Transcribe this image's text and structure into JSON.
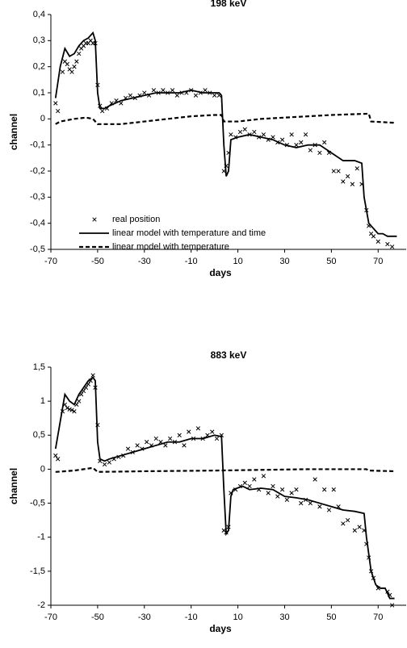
{
  "chart_data": [
    {
      "type": "line",
      "title": "198 keV",
      "xlabel": "days",
      "ylabel": "channel",
      "legend": "lower left",
      "xlim": [
        -70,
        82
      ],
      "xticks": [
        -70,
        -50,
        -30,
        -10,
        10,
        30,
        50,
        70
      ],
      "ylim": [
        -0.5,
        0.4
      ],
      "yticks": [
        {
          "value": 0.4,
          "label": "0,4"
        },
        {
          "value": 0.3,
          "label": "0,3"
        },
        {
          "value": 0.2,
          "label": "0,2"
        },
        {
          "value": 0.1,
          "label": "0,1"
        },
        0,
        {
          "value": -0.1,
          "label": "-0,1"
        },
        {
          "value": -0.2,
          "label": "-0,2"
        },
        {
          "value": -0.3,
          "label": "-0,3"
        },
        {
          "value": -0.4,
          "label": "-0,4"
        },
        {
          "value": -0.5,
          "label": "-0,5"
        }
      ],
      "series": [
        {
          "name": "real position",
          "type": "scatter",
          "color": "#000000",
          "x": [
            -68,
            -67,
            -65,
            -64,
            -63,
            -62,
            -61,
            -60,
            -59,
            -58,
            -57,
            -56,
            -55,
            -54,
            -53,
            -52,
            -51,
            -50,
            -49,
            -48,
            -46,
            -44,
            -42,
            -40,
            -38,
            -36,
            -34,
            -32,
            -30,
            -28,
            -26,
            -24,
            -22,
            -20,
            -18,
            -16,
            -14,
            -12,
            -10,
            -8,
            -6,
            -4,
            -2,
            0,
            2,
            4,
            5,
            6,
            7,
            9,
            11,
            13,
            15,
            17,
            19,
            21,
            23,
            25,
            27,
            29,
            31,
            33,
            35,
            37,
            39,
            41,
            43,
            45,
            47,
            49,
            51,
            53,
            55,
            57,
            59,
            61,
            63,
            65,
            66,
            67,
            68,
            70,
            74,
            76
          ],
          "values": [
            0.06,
            0.03,
            0.18,
            0.22,
            0.21,
            0.19,
            0.18,
            0.2,
            0.22,
            0.25,
            0.27,
            0.28,
            0.29,
            0.29,
            0.3,
            0.29,
            0.29,
            0.13,
            0.05,
            0.03,
            0.04,
            0.06,
            0.07,
            0.06,
            0.08,
            0.09,
            0.08,
            0.09,
            0.1,
            0.09,
            0.11,
            0.1,
            0.11,
            0.1,
            0.11,
            0.09,
            0.1,
            0.1,
            0.11,
            0.09,
            0.1,
            0.11,
            0.1,
            0.09,
            0.09,
            -0.2,
            -0.18,
            -0.13,
            -0.06,
            -0.07,
            -0.05,
            -0.04,
            -0.06,
            -0.05,
            -0.07,
            -0.06,
            -0.08,
            -0.07,
            -0.09,
            -0.08,
            -0.1,
            -0.06,
            -0.1,
            -0.09,
            -0.06,
            -0.12,
            -0.1,
            -0.13,
            -0.09,
            -0.13,
            -0.2,
            -0.2,
            -0.24,
            -0.22,
            -0.25,
            -0.19,
            -0.25,
            -0.35,
            -0.41,
            -0.44,
            -0.45,
            -0.47,
            -0.48,
            -0.49
          ]
        },
        {
          "name": "linear model with temperature and time",
          "type": "line",
          "color": "#000000",
          "x": [
            -68,
            -66,
            -64,
            -62,
            -60,
            -58,
            -56,
            -54,
            -52,
            -51,
            -50,
            -49,
            -47,
            -45,
            -40,
            -35,
            -30,
            -25,
            -20,
            -15,
            -10,
            -5,
            0,
            2,
            3,
            4,
            5,
            6,
            7,
            10,
            15,
            20,
            25,
            30,
            35,
            40,
            45,
            50,
            55,
            60,
            63,
            64,
            66,
            68,
            70,
            72,
            74,
            76,
            78
          ],
          "values": [
            0.08,
            0.2,
            0.27,
            0.24,
            0.25,
            0.28,
            0.3,
            0.31,
            0.33,
            0.3,
            0.1,
            0.04,
            0.04,
            0.05,
            0.07,
            0.08,
            0.09,
            0.1,
            0.1,
            0.1,
            0.11,
            0.1,
            0.1,
            0.1,
            0.09,
            -0.1,
            -0.22,
            -0.2,
            -0.08,
            -0.07,
            -0.06,
            -0.07,
            -0.08,
            -0.1,
            -0.11,
            -0.1,
            -0.1,
            -0.13,
            -0.16,
            -0.16,
            -0.17,
            -0.3,
            -0.4,
            -0.42,
            -0.44,
            -0.44,
            -0.45,
            -0.45,
            -0.45
          ]
        },
        {
          "name": "linear model with temperature",
          "type": "line",
          "dash": true,
          "color": "#000000",
          "x": [
            -68,
            -66,
            -60,
            -55,
            -52,
            -50,
            -40,
            -30,
            -20,
            -10,
            0,
            3,
            4,
            10,
            20,
            40,
            50,
            66,
            67,
            77
          ],
          "values": [
            -0.02,
            -0.01,
            0,
            0.005,
            0,
            -0.02,
            -0.02,
            -0.01,
            0,
            0.01,
            0.015,
            0.015,
            -0.01,
            -0.01,
            0,
            0.01,
            0.015,
            0.02,
            -0.01,
            -0.015
          ]
        }
      ]
    },
    {
      "type": "line",
      "title": "883 keV",
      "xlabel": "days",
      "ylabel": "channel",
      "xlim": [
        -70,
        82
      ],
      "xticks": [
        -70,
        -50,
        -30,
        -10,
        10,
        30,
        50,
        70
      ],
      "ylim": [
        -2,
        1.5
      ],
      "yticks": [
        {
          "value": 1.5,
          "label": "1,5"
        },
        1,
        {
          "value": 0.5,
          "label": "0,5"
        },
        0,
        {
          "value": -0.5,
          "label": "-0,5"
        },
        -1,
        {
          "value": -1.5,
          "label": "-1,5"
        },
        -2
      ],
      "series": [
        {
          "type": "scatter",
          "color": "#000000",
          "x": [
            -68,
            -67,
            -65,
            -64,
            -63,
            -62,
            -61,
            -60,
            -59,
            -58,
            -57,
            -56,
            -55,
            -54,
            -53,
            -52,
            -51,
            -50,
            -49,
            -47,
            -45,
            -43,
            -41,
            -39,
            -37,
            -35,
            -33,
            -31,
            -29,
            -27,
            -25,
            -23,
            -21,
            -19,
            -17,
            -15,
            -13,
            -11,
            -9,
            -7,
            -5,
            -3,
            -1,
            1,
            3,
            4,
            5,
            6,
            7,
            9,
            11,
            13,
            15,
            17,
            19,
            21,
            23,
            25,
            27,
            29,
            31,
            33,
            35,
            37,
            39,
            41,
            43,
            45,
            47,
            49,
            51,
            53,
            55,
            57,
            60,
            62,
            64,
            65,
            66,
            67,
            68,
            70,
            74,
            75,
            76
          ],
          "values": [
            0.2,
            0.15,
            0.85,
            0.95,
            0.9,
            0.88,
            0.87,
            0.85,
            0.95,
            1.0,
            1.1,
            1.15,
            1.2,
            1.25,
            1.3,
            1.38,
            1.2,
            0.65,
            0.12,
            0.07,
            0.1,
            0.15,
            0.18,
            0.2,
            0.3,
            0.25,
            0.35,
            0.3,
            0.4,
            0.35,
            0.45,
            0.4,
            0.35,
            0.45,
            0.4,
            0.5,
            0.35,
            0.55,
            0.45,
            0.6,
            0.45,
            0.5,
            0.55,
            0.45,
            0.5,
            -0.9,
            -0.93,
            -0.85,
            -0.35,
            -0.3,
            -0.25,
            -0.2,
            -0.25,
            -0.15,
            -0.3,
            -0.1,
            -0.35,
            -0.25,
            -0.4,
            -0.3,
            -0.45,
            -0.35,
            -0.3,
            -0.5,
            -0.45,
            -0.5,
            -0.15,
            -0.55,
            -0.3,
            -0.6,
            -0.3,
            -0.55,
            -0.8,
            -0.75,
            -0.9,
            -0.85,
            -0.9,
            -1.1,
            -1.3,
            -1.5,
            -1.6,
            -1.75,
            -1.8,
            -1.85,
            -2.0
          ]
        },
        {
          "type": "line",
          "color": "#000000",
          "x": [
            -68,
            -66,
            -64,
            -62,
            -60,
            -58,
            -56,
            -54,
            -52,
            -51,
            -50,
            -49,
            -47,
            -45,
            -40,
            -35,
            -30,
            -25,
            -20,
            -15,
            -10,
            -5,
            0,
            3,
            4,
            5,
            6,
            7,
            8,
            12,
            15,
            20,
            25,
            30,
            35,
            40,
            45,
            50,
            55,
            60,
            64,
            65,
            67,
            69,
            71,
            73,
            75,
            77
          ],
          "values": [
            0.3,
            0.7,
            1.1,
            1.0,
            0.95,
            1.1,
            1.2,
            1.3,
            1.35,
            1.3,
            0.4,
            0.15,
            0.12,
            0.15,
            0.2,
            0.25,
            0.3,
            0.35,
            0.4,
            0.4,
            0.45,
            0.45,
            0.5,
            0.48,
            -0.3,
            -0.95,
            -0.9,
            -0.4,
            -0.3,
            -0.25,
            -0.3,
            -0.28,
            -0.3,
            -0.4,
            -0.42,
            -0.45,
            -0.5,
            -0.55,
            -0.6,
            -0.62,
            -0.65,
            -1.0,
            -1.5,
            -1.7,
            -1.75,
            -1.75,
            -1.9,
            -1.9
          ]
        },
        {
          "type": "line",
          "dash": true,
          "color": "#000000",
          "x": [
            -68,
            -60,
            -52,
            -50,
            -30,
            0,
            20,
            40,
            65,
            66,
            77
          ],
          "values": [
            -0.04,
            -0.02,
            0.02,
            -0.04,
            -0.03,
            -0.02,
            -0.01,
            0,
            0,
            -0.02,
            -0.03
          ]
        }
      ]
    }
  ]
}
